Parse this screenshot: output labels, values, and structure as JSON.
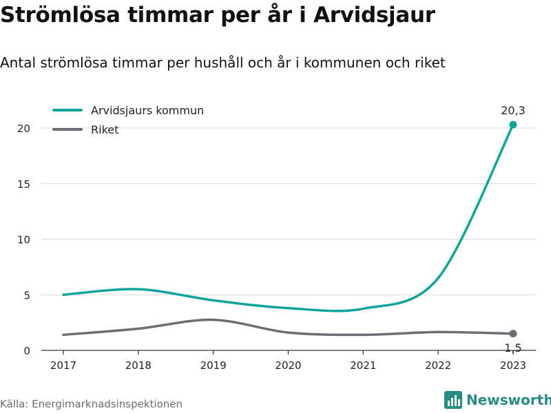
{
  "title": "Strömlösa timmar per år i Arvidsjaur",
  "subtitle": "Antal strömlösa timmar per hushåll och år i kommunen och riket",
  "source": "Källa: Energimarknadsinspektionen",
  "brand": {
    "name": "Newsworthy",
    "logo_icon": "bar-chart-logo-icon",
    "color": "#2a8a84"
  },
  "chart_data": {
    "type": "line",
    "title": "Strömlösa timmar per år i Arvidsjaur",
    "subtitle": "Antal strömlösa timmar per hushåll och år i kommunen och riket",
    "xlabel": "",
    "ylabel": "",
    "categories": [
      "2017",
      "2018",
      "2019",
      "2020",
      "2021",
      "2022",
      "2023"
    ],
    "ylim": [
      0,
      20
    ],
    "yticks": [
      "0",
      "5",
      "10",
      "15",
      "20"
    ],
    "grid": true,
    "legend_position": "top-left",
    "series": [
      {
        "name": "Arvidsjaurs kommun",
        "color": "#0fa399",
        "values": [
          5.0,
          5.5,
          4.5,
          3.8,
          3.75,
          6.5,
          20.3
        ],
        "end_label": "20,3"
      },
      {
        "name": "Riket",
        "color": "#6d6c75",
        "values": [
          1.4,
          1.95,
          2.75,
          1.6,
          1.4,
          1.65,
          1.5
        ],
        "end_label": "1,5"
      }
    ]
  }
}
